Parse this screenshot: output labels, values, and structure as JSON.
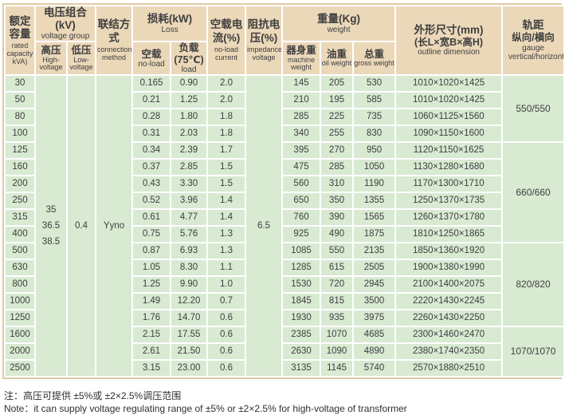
{
  "colors": {
    "header_bg": "#ebd8b9",
    "cell_bg": "#d8ead2",
    "grid_border": "#ffffff",
    "outer_border": "#e0cba4",
    "text": "#3e3e3e"
  },
  "table": {
    "header": {
      "capacity_zh": "额定容量",
      "capacity_en": "rated capacity kVA)",
      "voltage_group_zh": "电压组合(kV)",
      "voltage_group_en": "voltage group",
      "hv_zh": "高压",
      "hv_en": "High-voltage",
      "lv_zh": "低压",
      "lv_en": "Low-voltage",
      "connection_zh": "联结方式",
      "connection_en": "connection method",
      "loss_zh": "损耗(kW)",
      "loss_en": "Loss",
      "noload_zh": "空载",
      "noload_en": "no-load",
      "load_zh": "负载(75℃)",
      "load_en": "load",
      "noload_current_zh": "空载电流(%)",
      "noload_current_en": "no-load current",
      "impedance_zh": "阻抗电压(%)",
      "impedance_en": "impedance voltage",
      "weight_zh": "重量(Kg)",
      "weight_en": "weight",
      "machine_zh": "器身重",
      "machine_en": "machine weight",
      "oil_zh": "油重",
      "oil_en": "oil weight",
      "gross_zh": "总重",
      "gross_en": "gross weight",
      "dimension_zh": "外形尺寸(mm)",
      "dimension_zh2": "(长L×宽B×高H)",
      "dimension_en": "outline dimension",
      "gauge_zh": "轨距",
      "gauge_zh2": "纵向/横向",
      "gauge_en": "gauge vertical/horizontal"
    },
    "merged": {
      "high_voltage": [
        "35",
        "36.5",
        "38.5"
      ],
      "low_voltage": "0.4",
      "connection": "Yyno",
      "impedance_voltage": "6.5"
    },
    "rows": [
      {
        "capacity": "30",
        "no_load_loss": "0.165",
        "load_loss": "0.90",
        "no_load_current": "2.0",
        "machine_weight": "145",
        "oil_weight": "205",
        "gross_weight": "530",
        "dimension": "1010×1020×1425"
      },
      {
        "capacity": "50",
        "no_load_loss": "0.21",
        "load_loss": "1.25",
        "no_load_current": "2.0",
        "machine_weight": "210",
        "oil_weight": "195",
        "gross_weight": "585",
        "dimension": "1010×1020×1425"
      },
      {
        "capacity": "80",
        "no_load_loss": "0.28",
        "load_loss": "1.80",
        "no_load_current": "1.8",
        "machine_weight": "285",
        "oil_weight": "225",
        "gross_weight": "735",
        "dimension": "1060×1125×1560"
      },
      {
        "capacity": "100",
        "no_load_loss": "0.31",
        "load_loss": "2.03",
        "no_load_current": "1.8",
        "machine_weight": "340",
        "oil_weight": "255",
        "gross_weight": "830",
        "dimension": "1090×1150×1600"
      },
      {
        "capacity": "125",
        "no_load_loss": "0.34",
        "load_loss": "2.39",
        "no_load_current": "1.7",
        "machine_weight": "395",
        "oil_weight": "270",
        "gross_weight": "950",
        "dimension": "1120×1150×1625"
      },
      {
        "capacity": "160",
        "no_load_loss": "0.37",
        "load_loss": "2.85",
        "no_load_current": "1.5",
        "machine_weight": "475",
        "oil_weight": "285",
        "gross_weight": "1050",
        "dimension": "1130×1280×1680"
      },
      {
        "capacity": "200",
        "no_load_loss": "0.43",
        "load_loss": "3.30",
        "no_load_current": "1.5",
        "machine_weight": "560",
        "oil_weight": "310",
        "gross_weight": "1190",
        "dimension": "1170×1300×1710"
      },
      {
        "capacity": "250",
        "no_load_loss": "0.52",
        "load_loss": "3.96",
        "no_load_current": "1.4",
        "machine_weight": "650",
        "oil_weight": "350",
        "gross_weight": "1355",
        "dimension": "1250×1370×1735"
      },
      {
        "capacity": "315",
        "no_load_loss": "0.61",
        "load_loss": "4.77",
        "no_load_current": "1.4",
        "machine_weight": "760",
        "oil_weight": "390",
        "gross_weight": "1565",
        "dimension": "1260×1370×1780"
      },
      {
        "capacity": "400",
        "no_load_loss": "0.75",
        "load_loss": "5.76",
        "no_load_current": "1.3",
        "machine_weight": "925",
        "oil_weight": "490",
        "gross_weight": "1875",
        "dimension": "1810×1250×1865"
      },
      {
        "capacity": "500",
        "no_load_loss": "0.87",
        "load_loss": "6.93",
        "no_load_current": "1.3",
        "machine_weight": "1085",
        "oil_weight": "550",
        "gross_weight": "2135",
        "dimension": "1850×1360×1920"
      },
      {
        "capacity": "630",
        "no_load_loss": "1.05",
        "load_loss": "8.30",
        "no_load_current": "1.1",
        "machine_weight": "1285",
        "oil_weight": "615",
        "gross_weight": "2505",
        "dimension": "1900×1380×1990"
      },
      {
        "capacity": "800",
        "no_load_loss": "1.25",
        "load_loss": "9.90",
        "no_load_current": "1.0",
        "machine_weight": "1530",
        "oil_weight": "720",
        "gross_weight": "2945",
        "dimension": "2100×1400×2075"
      },
      {
        "capacity": "1000",
        "no_load_loss": "1.49",
        "load_loss": "12.20",
        "no_load_current": "0.7",
        "machine_weight": "1845",
        "oil_weight": "815",
        "gross_weight": "3500",
        "dimension": "2220×1430×2245"
      },
      {
        "capacity": "1250",
        "no_load_loss": "1.76",
        "load_loss": "14.70",
        "no_load_current": "0.6",
        "machine_weight": "1930",
        "oil_weight": "935",
        "gross_weight": "3975",
        "dimension": "2260×1430×2250"
      },
      {
        "capacity": "1600",
        "no_load_loss": "2.15",
        "load_loss": "17.55",
        "no_load_current": "0.6",
        "machine_weight": "2385",
        "oil_weight": "1070",
        "gross_weight": "4685",
        "dimension": "2300×1460×2470"
      },
      {
        "capacity": "2000",
        "no_load_loss": "2.61",
        "load_loss": "21.50",
        "no_load_current": "0.6",
        "machine_weight": "2630",
        "oil_weight": "1090",
        "gross_weight": "4890",
        "dimension": "2380×1740×2350"
      },
      {
        "capacity": "2500",
        "no_load_loss": "3.15",
        "load_loss": "23.00",
        "no_load_current": "0.6",
        "machine_weight": "3135",
        "oil_weight": "1145",
        "gross_weight": "5740",
        "dimension": "2570×1880×2510"
      }
    ],
    "gauge_groups": [
      {
        "label": "550/550",
        "span": 4
      },
      {
        "label": "660/660",
        "span": 6
      },
      {
        "label": "820/820",
        "span": 5
      },
      {
        "label": "1070/1070",
        "span": 3
      }
    ]
  },
  "notes": {
    "zh": "注：高压可提供 ±5%或 ±2×2.5%调压范围",
    "en": "Note：it can supply voltage regulating range of ±5% or ±2×2.5% for high-voltage of transformer"
  }
}
